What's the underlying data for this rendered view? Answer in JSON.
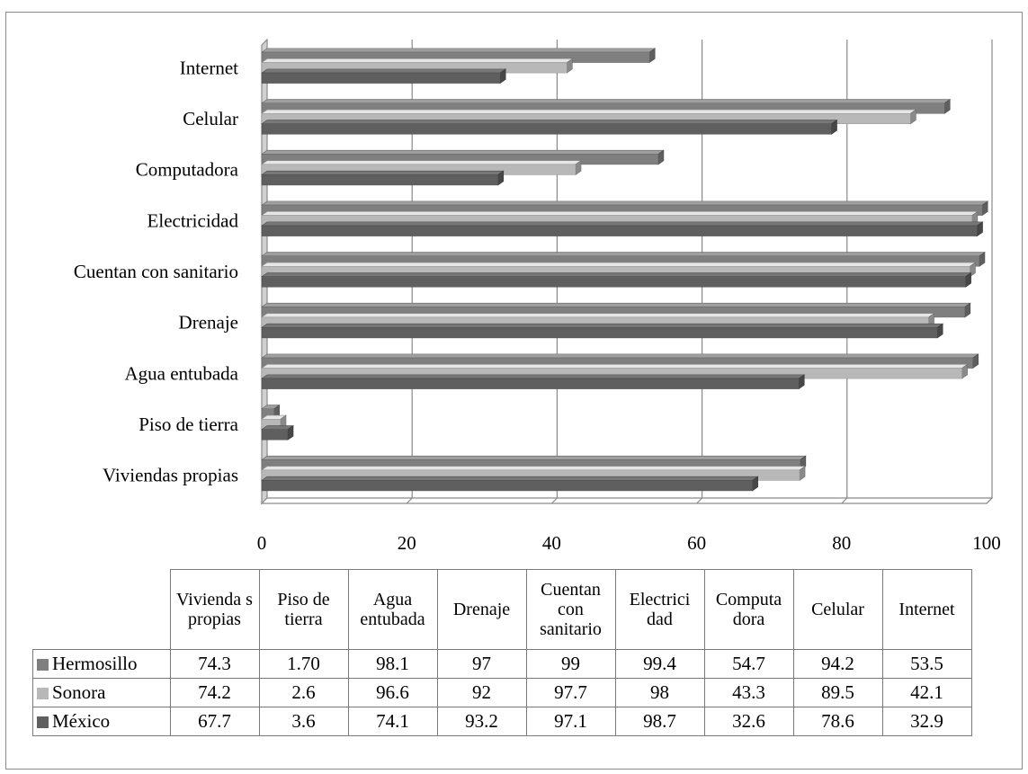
{
  "chart_data": {
    "type": "bar",
    "orientation": "horizontal",
    "categories": [
      "Viviendas propias",
      "Piso de tierra",
      "Agua entubada",
      "Drenaje",
      "Cuentan con sanitario",
      "Electricidad",
      "Computadora",
      "Celular",
      "Internet"
    ],
    "table_headers": [
      "Vivienda s propias",
      "Piso de tierra",
      "Agua entubada",
      "Drenaje",
      "Cuentan con sanitario",
      "Electrici dad",
      "Computa dora",
      "Celular",
      "Internet"
    ],
    "series": [
      {
        "name": "Hermosillo",
        "color": "#7f7f7f",
        "values": [
          74.3,
          1.7,
          98.1,
          97,
          99,
          99.4,
          54.7,
          94.2,
          53.5
        ],
        "labels": [
          "74.3",
          "1.70",
          "98.1",
          "97",
          "99",
          "99.4",
          "54.7",
          "94.2",
          "53.5"
        ]
      },
      {
        "name": "Sonora",
        "color": "#b8b8b8",
        "values": [
          74.2,
          2.6,
          96.6,
          92,
          97.7,
          98,
          43.3,
          89.5,
          42.1
        ],
        "labels": [
          "74.2",
          "2.6",
          "96.6",
          "92",
          "97.7",
          "98",
          "43.3",
          "89.5",
          "42.1"
        ]
      },
      {
        "name": "México",
        "color": "#5f5f5f",
        "values": [
          67.7,
          3.6,
          74.1,
          93.2,
          97.1,
          98.7,
          32.6,
          78.6,
          32.9
        ],
        "labels": [
          "67.7",
          "3.6",
          "74.1",
          "93.2",
          "97.1",
          "98.7",
          "32.6",
          "78.6",
          "32.9"
        ]
      }
    ],
    "xlim": [
      0,
      100
    ],
    "x_ticks": [
      "0",
      "20",
      "40",
      "60",
      "80",
      "100"
    ],
    "grid": true,
    "legend": "data table below chart",
    "title": "",
    "xlabel": "",
    "ylabel": ""
  }
}
